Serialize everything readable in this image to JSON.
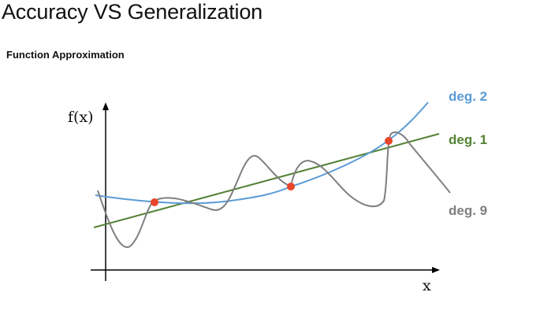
{
  "slide": {
    "title": "Accuracy VS Generalization",
    "subtitle": "Function Approximation"
  },
  "chart_data": {
    "type": "line",
    "title": "",
    "xlabel": "x",
    "ylabel": "f(x)",
    "grid": false,
    "series": [
      {
        "name": "deg. 2",
        "color": "#5b9bd5"
      },
      {
        "name": "deg. 1",
        "color": "#548235"
      },
      {
        "name": "deg. 9",
        "color": "#7f7f7f"
      }
    ],
    "points_color": "#e8462a"
  }
}
